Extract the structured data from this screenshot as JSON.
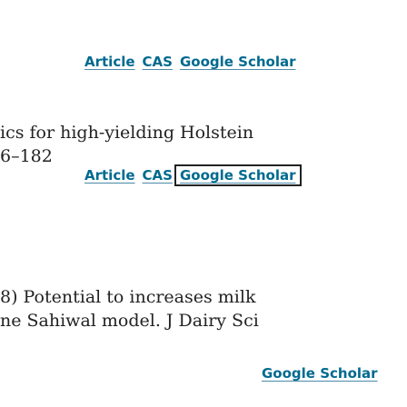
{
  "reference_1": {
    "links": [
      "Article",
      "CAS",
      "Google Scholar"
    ],
    "text_lines": [
      "ics for high-yielding Holstein",
      "6–182"
    ]
  },
  "reference_2": {
    "links": [
      "Article",
      "CAS",
      "Google Scholar"
    ],
    "text_lines": [
      "8) Potential to increases milk",
      "ne Sahiwal model. J Dairy Sci"
    ]
  },
  "reference_3": {
    "links": [
      "Google Scholar"
    ]
  },
  "colors": {
    "link": "#006a8f",
    "text": "#222222",
    "focus_outline": "#222222"
  }
}
